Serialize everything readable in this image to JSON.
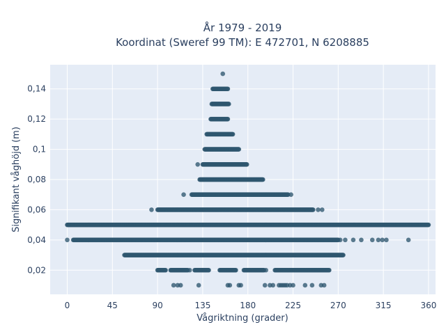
{
  "chart_data": {
    "type": "scatter",
    "title_line1": "År 1979 - 2019",
    "title_line2": "Koordinat (Sweref 99 TM): E 472701, N 6208885",
    "xlabel": "Vågriktning (grader)",
    "ylabel": "Signifikant våghöjd (m)",
    "xlim": [
      -17,
      367
    ],
    "ylim": [
      0.004,
      0.156
    ],
    "x_ticks": [
      0,
      45,
      90,
      135,
      180,
      225,
      270,
      315,
      360
    ],
    "x_tick_labels": [
      "0",
      "45",
      "90",
      "135",
      "180",
      "225",
      "270",
      "315",
      "360"
    ],
    "y_ticks": [
      0.02,
      0.04,
      0.06,
      0.08,
      0.1,
      0.12,
      0.14
    ],
    "y_tick_labels": [
      "0,02",
      "0,04",
      "0,06",
      "0,08",
      "0,1",
      "0,12",
      "0,14"
    ],
    "grid": true,
    "colors": {
      "marker": "#2f5770",
      "background": "#e5ecf6",
      "grid": "#ffffff",
      "text": "#2a3f5f"
    },
    "bands": [
      {
        "y": 0.01,
        "x_ranges": [],
        "isolated_x": [
          106,
          110,
          113,
          131,
          160,
          162,
          171,
          173,
          197,
          202,
          205,
          211,
          213,
          215,
          217,
          219,
          222,
          225,
          237,
          244,
          253,
          256
        ]
      },
      {
        "y": 0.02,
        "x_ranges": [
          [
            90,
            98
          ],
          [
            103,
            120
          ],
          [
            127,
            141
          ],
          [
            152,
            168
          ],
          [
            176,
            196
          ],
          [
            207,
            261
          ]
        ],
        "isolated_x": [
          122,
          198
        ]
      },
      {
        "y": 0.03,
        "x_ranges": [
          [
            57,
            275
          ]
        ],
        "isolated_x": []
      },
      {
        "y": 0.04,
        "x_ranges": [
          [
            6,
            270
          ]
        ],
        "isolated_x": [
          0,
          272,
          277,
          285,
          293,
          304,
          310,
          314,
          318,
          340
        ]
      },
      {
        "y": 0.05,
        "x_ranges": [
          [
            0,
            360
          ]
        ],
        "isolated_x": []
      },
      {
        "y": 0.06,
        "x_ranges": [
          [
            90,
            245
          ]
        ],
        "isolated_x": [
          84,
          250,
          254
        ]
      },
      {
        "y": 0.07,
        "x_ranges": [
          [
            124,
            220
          ]
        ],
        "isolated_x": [
          116,
          223
        ]
      },
      {
        "y": 0.08,
        "x_ranges": [
          [
            132,
            195
          ]
        ],
        "isolated_x": []
      },
      {
        "y": 0.09,
        "x_ranges": [
          [
            135,
            179
          ]
        ],
        "isolated_x": [
          130
        ]
      },
      {
        "y": 0.1,
        "x_ranges": [
          [
            137,
            171
          ]
        ],
        "isolated_x": []
      },
      {
        "y": 0.11,
        "x_ranges": [
          [
            139,
            165
          ]
        ],
        "isolated_x": []
      },
      {
        "y": 0.12,
        "x_ranges": [
          [
            143,
            160
          ]
        ],
        "isolated_x": []
      },
      {
        "y": 0.13,
        "x_ranges": [
          [
            144,
            161
          ]
        ],
        "isolated_x": []
      },
      {
        "y": 0.14,
        "x_ranges": [
          [
            145,
            160
          ]
        ],
        "isolated_x": []
      },
      {
        "y": 0.15,
        "x_ranges": [],
        "isolated_x": [
          155
        ]
      }
    ]
  }
}
